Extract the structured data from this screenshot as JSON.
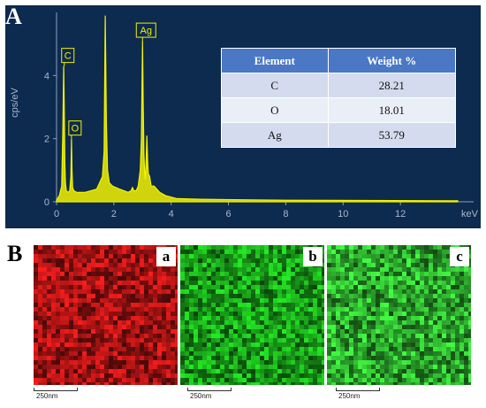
{
  "panel_a_letter": "A",
  "panel_b_letter": "B",
  "chart_data": {
    "type": "line",
    "xlabel": "keV",
    "ylabel": "cps/eV",
    "xlim": [
      0,
      14
    ],
    "ylim": [
      0,
      6
    ],
    "x_ticks": [
      0,
      2,
      4,
      6,
      8,
      10,
      12
    ],
    "y_ticks": [
      0,
      2,
      4
    ],
    "grid": false,
    "series": [
      {
        "x": [
          0,
          0.1,
          0.18,
          0.22,
          0.25,
          0.27,
          0.29,
          0.31,
          0.34,
          0.4,
          0.46,
          0.5,
          0.52,
          0.54,
          0.56,
          0.6,
          0.7,
          1.0,
          1.4,
          1.6,
          1.66,
          1.7,
          1.74,
          1.78,
          1.84,
          1.95,
          2.2,
          2.5,
          2.6,
          2.65,
          2.7,
          2.78,
          2.85,
          2.92,
          2.96,
          2.98,
          3.0,
          3.02,
          3.05,
          3.08,
          3.1,
          3.13,
          3.15,
          3.18,
          3.2,
          3.25,
          3.3,
          3.4,
          3.5,
          3.6,
          3.8,
          4.2,
          5.0,
          8.0,
          14.0
        ],
        "y": [
          0.05,
          0.2,
          0.5,
          2.3,
          4.3,
          2.8,
          1.2,
          0.6,
          0.35,
          0.3,
          0.35,
          0.8,
          2.0,
          1.0,
          0.45,
          0.35,
          0.3,
          0.3,
          0.4,
          0.8,
          1.6,
          5.9,
          2.5,
          1.0,
          0.6,
          0.5,
          0.4,
          0.3,
          0.35,
          0.45,
          0.35,
          0.35,
          0.5,
          1.0,
          2.0,
          3.5,
          5.1,
          3.5,
          1.5,
          0.8,
          0.7,
          1.4,
          2.1,
          1.3,
          0.9,
          0.8,
          0.5,
          0.5,
          0.4,
          0.3,
          0.2,
          0.1,
          0.08,
          0.05,
          0.03
        ]
      }
    ],
    "annotations": [
      {
        "label": "C",
        "x": 0.27,
        "y": 4.3
      },
      {
        "label": "O",
        "x": 0.52,
        "y": 2.0
      },
      {
        "label": "Ag",
        "x": 3.0,
        "y": 5.1
      }
    ],
    "line_color": "#f2f200",
    "background_color": "#0d2a4f"
  },
  "table": {
    "headers": [
      "Element",
      "Weight %"
    ],
    "rows": [
      [
        "C",
        "28.21"
      ],
      [
        "O",
        "18.01"
      ],
      [
        "Ag",
        "53.79"
      ]
    ]
  },
  "maps": [
    {
      "label": "a",
      "color": "#d01818",
      "scale": "250nm"
    },
    {
      "label": "b",
      "color": "#1ec41e",
      "scale": "250nm"
    },
    {
      "label": "c",
      "color": "#38d438",
      "scale": "250nm"
    }
  ]
}
